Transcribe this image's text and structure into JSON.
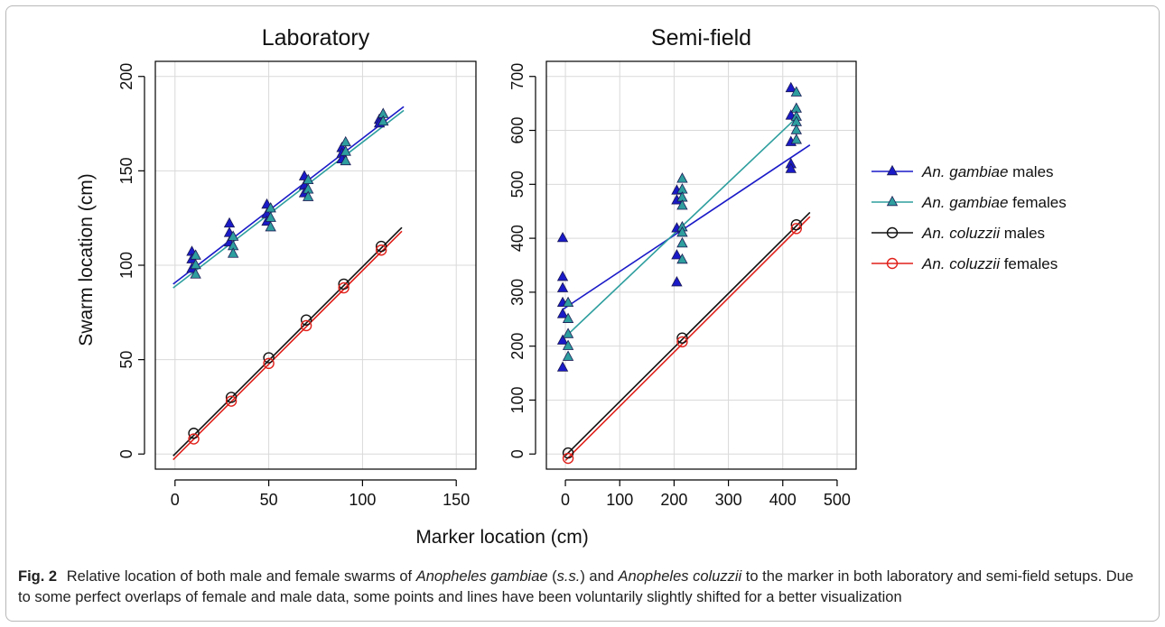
{
  "chart_data": [
    {
      "type": "scatter",
      "title": "Laboratory",
      "xlim": [
        0,
        150
      ],
      "ylim": [
        0,
        200
      ],
      "xticks": [
        0,
        50,
        100,
        150
      ],
      "yticks": [
        0,
        50,
        100,
        150,
        200
      ],
      "grid": true,
      "series": [
        {
          "name": "An. gambiae males",
          "color": "#1a1ac8",
          "marker": "filled-triangle",
          "points": [
            [
              9,
              107
            ],
            [
              9,
              103
            ],
            [
              9,
              98
            ],
            [
              29,
              122
            ],
            [
              29,
              117
            ],
            [
              29,
              112
            ],
            [
              49,
              132
            ],
            [
              49,
              127
            ],
            [
              49,
              123
            ],
            [
              69,
              147
            ],
            [
              69,
              142
            ],
            [
              69,
              138
            ],
            [
              89,
              162
            ],
            [
              89,
              159
            ],
            [
              89,
              156
            ],
            [
              109,
              177
            ],
            [
              109,
              175
            ]
          ],
          "fit": [
            [
              -1,
              90
            ],
            [
              122,
              184
            ]
          ]
        },
        {
          "name": "An. gambiae females",
          "color": "#2e9e9e",
          "marker": "filled-triangle",
          "points": [
            [
              11,
              105
            ],
            [
              11,
              100
            ],
            [
              11,
              95
            ],
            [
              31,
              115
            ],
            [
              31,
              110
            ],
            [
              31,
              106
            ],
            [
              51,
              130
            ],
            [
              51,
              125
            ],
            [
              51,
              120
            ],
            [
              71,
              145
            ],
            [
              71,
              140
            ],
            [
              71,
              136
            ],
            [
              91,
              165
            ],
            [
              91,
              160
            ],
            [
              91,
              155
            ],
            [
              111,
              180
            ],
            [
              111,
              176
            ]
          ],
          "fit": [
            [
              -1,
              88
            ],
            [
              122,
              182
            ]
          ]
        },
        {
          "name": "An. coluzzii males",
          "color": "#111111",
          "marker": "open-circle",
          "points": [
            [
              10,
              11
            ],
            [
              30,
              30
            ],
            [
              50,
              51
            ],
            [
              70,
              71
            ],
            [
              90,
              90
            ],
            [
              110,
              110
            ]
          ],
          "fit": [
            [
              -1,
              -1
            ],
            [
              121,
              120
            ]
          ]
        },
        {
          "name": "An. coluzzii females",
          "color": "#e0201a",
          "marker": "open-circle",
          "points": [
            [
              10,
              8
            ],
            [
              30,
              28
            ],
            [
              50,
              48
            ],
            [
              70,
              68
            ],
            [
              90,
              88
            ],
            [
              110,
              108
            ]
          ],
          "fit": [
            [
              -1,
              -3
            ],
            [
              121,
              118
            ]
          ]
        }
      ]
    },
    {
      "type": "scatter",
      "title": "Semi-field",
      "xlim": [
        0,
        500
      ],
      "ylim": [
        0,
        700
      ],
      "xticks": [
        0,
        100,
        200,
        300,
        400,
        500
      ],
      "yticks": [
        0,
        100,
        200,
        300,
        400,
        500,
        600,
        700
      ],
      "grid": true,
      "series": [
        {
          "name": "An. gambiae males",
          "color": "#1a1ac8",
          "marker": "filled-triangle",
          "points": [
            [
              -5,
              400
            ],
            [
              -5,
              328
            ],
            [
              -5,
              307
            ],
            [
              -5,
              280
            ],
            [
              -5,
              259
            ],
            [
              -5,
              210
            ],
            [
              -5,
              160
            ],
            [
              205,
              488
            ],
            [
              205,
              470
            ],
            [
              205,
              418
            ],
            [
              205,
              368
            ],
            [
              205,
              318
            ],
            [
              415,
              678
            ],
            [
              415,
              627
            ],
            [
              415,
              578
            ],
            [
              415,
              537
            ],
            [
              415,
              528
            ]
          ],
          "fit": [
            [
              -5,
              268
            ],
            [
              450,
              573
            ]
          ]
        },
        {
          "name": "An. gambiae females",
          "color": "#2e9e9e",
          "marker": "filled-triangle",
          "points": [
            [
              5,
              280
            ],
            [
              5,
              250
            ],
            [
              5,
              222
            ],
            [
              5,
              200
            ],
            [
              5,
              180
            ],
            [
              215,
              510
            ],
            [
              215,
              490
            ],
            [
              215,
              475
            ],
            [
              215,
              460
            ],
            [
              215,
              420
            ],
            [
              215,
              410
            ],
            [
              215,
              390
            ],
            [
              215,
              360
            ],
            [
              425,
              670
            ],
            [
              425,
              640
            ],
            [
              425,
              625
            ],
            [
              425,
              615
            ],
            [
              425,
              600
            ],
            [
              425,
              582
            ]
          ],
          "fit": [
            [
              5,
              222
            ],
            [
              430,
              628
            ]
          ]
        },
        {
          "name": "An. coluzzii males",
          "color": "#111111",
          "marker": "open-circle",
          "points": [
            [
              5,
              2
            ],
            [
              215,
              215
            ],
            [
              425,
              425
            ]
          ],
          "fit": [
            [
              0,
              -3
            ],
            [
              450,
              448
            ]
          ]
        },
        {
          "name": "An. coluzzii females",
          "color": "#e0201a",
          "marker": "open-circle",
          "points": [
            [
              5,
              -8
            ],
            [
              215,
              208
            ],
            [
              425,
              418
            ]
          ],
          "fit": [
            [
              0,
              -12
            ],
            [
              450,
              440
            ]
          ]
        }
      ]
    }
  ],
  "shared_labels": {
    "ylabel": "Swarm location (cm)",
    "xlabel": "Marker location (cm)"
  },
  "legend": {
    "placement": "right",
    "entries": [
      {
        "species": "An. gambiae",
        "sex": "males",
        "color": "#1a1ac8",
        "marker": "filled-triangle"
      },
      {
        "species": "An. gambiae",
        "sex": "females",
        "color": "#2e9e9e",
        "marker": "filled-triangle"
      },
      {
        "species": "An. coluzzii",
        "sex": "males",
        "color": "#111111",
        "marker": "open-circle"
      },
      {
        "species": "An. coluzzii",
        "sex": "females",
        "color": "#e0201a",
        "marker": "open-circle"
      }
    ]
  },
  "caption": {
    "label": "Fig. 2",
    "part1": "Relative location of both male and female swarms of ",
    "ital1": "Anopheles gambiae",
    "part2": " (",
    "ital2": "s.s.",
    "part3": ") and ",
    "ital3": "Anopheles coluzzii",
    "part4": " to the marker in both laboratory and semi-field setups. Due to some perfect overlaps of female and male data, some points and lines have been voluntarily slightly shifted for a better visualization"
  }
}
